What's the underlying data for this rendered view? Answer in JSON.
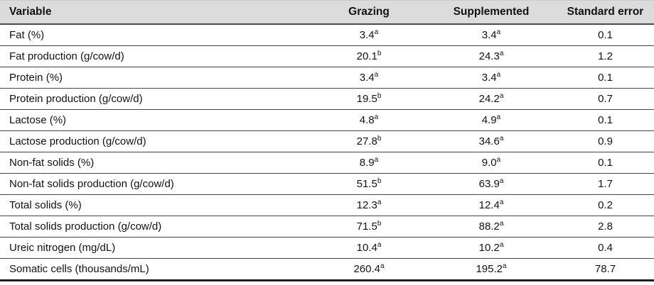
{
  "table": {
    "columns": [
      {
        "label": "Variable"
      },
      {
        "label": "Grazing"
      },
      {
        "label": "Supplemented"
      },
      {
        "label": "Standard error"
      }
    ],
    "rows": [
      {
        "variable": "Fat (%)",
        "grazing": {
          "value": "3.4",
          "sup": "a"
        },
        "supplemented": {
          "value": "3.4",
          "sup": "a"
        },
        "standard_error": "0.1"
      },
      {
        "variable": "Fat production (g/cow/d)",
        "grazing": {
          "value": "20.1",
          "sup": "b"
        },
        "supplemented": {
          "value": "24.3",
          "sup": "a"
        },
        "standard_error": "1.2"
      },
      {
        "variable": "Protein (%)",
        "grazing": {
          "value": "3.4",
          "sup": "a"
        },
        "supplemented": {
          "value": "3.4",
          "sup": "a"
        },
        "standard_error": "0.1"
      },
      {
        "variable": "Protein production (g/cow/d)",
        "grazing": {
          "value": "19.5",
          "sup": "b"
        },
        "supplemented": {
          "value": "24.2",
          "sup": "a"
        },
        "standard_error": "0.7"
      },
      {
        "variable": "Lactose (%)",
        "grazing": {
          "value": "4.8",
          "sup": "a"
        },
        "supplemented": {
          "value": "4.9",
          "sup": "a"
        },
        "standard_error": "0.1"
      },
      {
        "variable": "Lactose production (g/cow/d)",
        "grazing": {
          "value": "27.8",
          "sup": "b"
        },
        "supplemented": {
          "value": "34.6",
          "sup": "a"
        },
        "standard_error": "0.9"
      },
      {
        "variable": "Non-fat solids (%)",
        "grazing": {
          "value": "8.9",
          "sup": "a"
        },
        "supplemented": {
          "value": "9.0",
          "sup": "a"
        },
        "standard_error": "0.1"
      },
      {
        "variable": "Non-fat solids production (g/cow/d)",
        "grazing": {
          "value": "51.5",
          "sup": "b"
        },
        "supplemented": {
          "value": "63.9",
          "sup": "a"
        },
        "standard_error": "1.7"
      },
      {
        "variable": "Total solids (%)",
        "grazing": {
          "value": "12.3",
          "sup": "a"
        },
        "supplemented": {
          "value": "12.4",
          "sup": "a"
        },
        "standard_error": "0.2"
      },
      {
        "variable": "Total solids production (g/cow/d)",
        "grazing": {
          "value": "71.5",
          "sup": "b"
        },
        "supplemented": {
          "value": "88.2",
          "sup": "a"
        },
        "standard_error": "2.8"
      },
      {
        "variable": "Ureic nitrogen (mg/dL)",
        "grazing": {
          "value": "10.4",
          "sup": "a"
        },
        "supplemented": {
          "value": "10.2",
          "sup": "a"
        },
        "standard_error": "0.4"
      },
      {
        "variable": "Somatic cells (thousands/mL)",
        "grazing": {
          "value": "260.4",
          "sup": "a"
        },
        "supplemented": {
          "value": "195.2",
          "sup": "a"
        },
        "standard_error": "78.7"
      }
    ]
  },
  "colors": {
    "header_bg": "#dcdcdc",
    "header_rule": "#4d4d4d",
    "row_rule": "#454545",
    "bottom_rule": "#1f1f1f"
  }
}
